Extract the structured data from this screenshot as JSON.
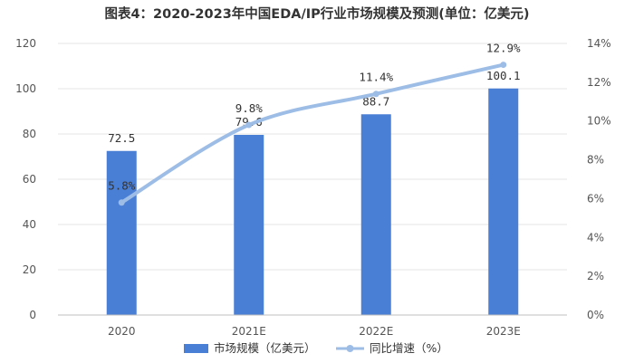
{
  "chart_data": {
    "type": "bar",
    "title": "图表4：2020-2023年中国EDA/IP行业市场规模及预测(单位：亿美元)",
    "categories": [
      "2020",
      "2021E",
      "2022E",
      "2023E"
    ],
    "series": [
      {
        "name": "市场规模（亿美元）",
        "type": "bar",
        "axis": "left",
        "values": [
          72.5,
          79.6,
          88.7,
          100.1
        ],
        "labels": [
          "72.5",
          "79.6",
          "88.7",
          "100.1"
        ]
      },
      {
        "name": "同比增速（%）",
        "type": "line",
        "axis": "right",
        "values": [
          5.8,
          9.8,
          11.4,
          12.9
        ],
        "labels": [
          "5.8%",
          "9.8%",
          "11.4%",
          "12.9%"
        ]
      }
    ],
    "y_left": {
      "min": 0,
      "max": 120,
      "ticks": [
        "0",
        "20",
        "40",
        "60",
        "80",
        "100",
        "120"
      ]
    },
    "y_right": {
      "min": 0,
      "max": 14,
      "ticks": [
        "0%",
        "2%",
        "4%",
        "6%",
        "8%",
        "10%",
        "12%",
        "14%"
      ]
    },
    "grid": true,
    "legend_position": "bottom",
    "colors": {
      "bar": "#4a7fd6",
      "line": "#9dbde6",
      "grid": "#e6e6e6"
    }
  }
}
